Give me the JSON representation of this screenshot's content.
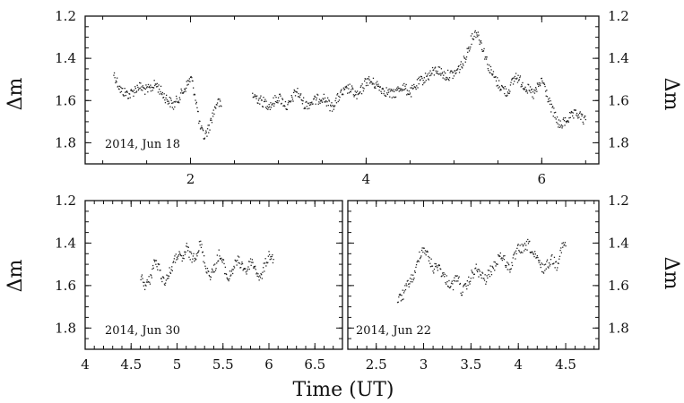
{
  "chart_data": [
    {
      "type": "scatter",
      "id": "top",
      "annotation": "2014, Jun 18",
      "ylabel_left": "Δm",
      "ylabel_right": "Δm",
      "xlabel": "",
      "xlim": [
        0.8,
        6.65
      ],
      "ylim": [
        1.9,
        1.2
      ],
      "xticks": [
        2,
        4,
        6
      ],
      "yticks": [
        1.2,
        1.4,
        1.6,
        1.8
      ],
      "segments": [
        {
          "x": [
            1.12,
            1.2,
            1.3,
            1.4,
            1.5,
            1.6,
            1.7,
            1.8,
            1.9,
            2.0,
            2.05,
            2.1,
            2.15,
            2.2,
            2.25,
            2.3,
            2.35
          ],
          "y": [
            1.47,
            1.55,
            1.57,
            1.53,
            1.55,
            1.52,
            1.58,
            1.62,
            1.56,
            1.49,
            1.58,
            1.72,
            1.77,
            1.73,
            1.66,
            1.6,
            1.63
          ]
        },
        {
          "x": [
            2.7,
            2.8,
            2.9,
            3.0,
            3.1,
            3.2,
            3.3,
            3.4,
            3.5,
            3.6,
            3.7,
            3.8,
            3.9,
            4.0,
            4.1,
            4.2,
            4.3,
            4.4,
            4.5,
            4.6,
            4.7,
            4.8,
            4.9,
            5.0,
            5.1,
            5.2,
            5.25,
            5.3,
            5.4,
            5.5,
            5.6,
            5.7,
            5.8,
            5.9,
            6.0,
            6.1,
            6.2,
            6.3,
            6.4,
            6.5
          ],
          "y": [
            1.57,
            1.6,
            1.62,
            1.58,
            1.63,
            1.55,
            1.62,
            1.6,
            1.58,
            1.63,
            1.57,
            1.54,
            1.58,
            1.5,
            1.52,
            1.55,
            1.57,
            1.53,
            1.56,
            1.51,
            1.48,
            1.45,
            1.48,
            1.47,
            1.42,
            1.3,
            1.27,
            1.32,
            1.45,
            1.52,
            1.56,
            1.48,
            1.53,
            1.57,
            1.5,
            1.63,
            1.72,
            1.68,
            1.66,
            1.7
          ]
        }
      ]
    },
    {
      "type": "scatter",
      "id": "bottom-left",
      "annotation": "2014, Jun 30",
      "ylabel_left": "Δm",
      "xlabel": "",
      "xlim": [
        4.0,
        6.8
      ],
      "ylim": [
        1.9,
        1.2
      ],
      "xticks": [
        4,
        4.5,
        5,
        5.5,
        6,
        6.5
      ],
      "yticks": [
        1.2,
        1.4,
        1.6,
        1.8
      ],
      "segments": [
        {
          "x": [
            4.6,
            4.65,
            4.7,
            4.75,
            4.8,
            4.85,
            4.9,
            4.95,
            5.0,
            5.05,
            5.1,
            5.15,
            5.2,
            5.25,
            5.3,
            5.35,
            5.4,
            5.45,
            5.5,
            5.55,
            5.6,
            5.65,
            5.7,
            5.75,
            5.8,
            5.85,
            5.9,
            5.95,
            6.0,
            6.05
          ],
          "y": [
            1.55,
            1.6,
            1.57,
            1.48,
            1.52,
            1.58,
            1.55,
            1.5,
            1.45,
            1.48,
            1.42,
            1.47,
            1.45,
            1.4,
            1.5,
            1.55,
            1.52,
            1.45,
            1.5,
            1.57,
            1.52,
            1.48,
            1.5,
            1.53,
            1.48,
            1.52,
            1.57,
            1.5,
            1.45,
            1.48
          ]
        }
      ]
    },
    {
      "type": "scatter",
      "id": "bottom-right",
      "annotation": "2014, Jun 22",
      "ylabel_right": "Δm",
      "xlabel": "",
      "xlim": [
        2.2,
        4.85
      ],
      "ylim": [
        1.9,
        1.2
      ],
      "xticks": [
        2.5,
        3,
        3.5,
        4,
        4.5
      ],
      "yticks": [
        1.2,
        1.4,
        1.6,
        1.8
      ],
      "segments": [
        {
          "x": [
            2.72,
            2.78,
            2.84,
            2.9,
            2.95,
            3.0,
            3.05,
            3.1,
            3.15,
            3.2,
            3.25,
            3.3,
            3.35,
            3.4,
            3.45,
            3.5,
            3.55,
            3.6,
            3.65,
            3.7,
            3.75,
            3.8,
            3.85,
            3.9,
            3.95,
            4.0,
            4.05,
            4.1,
            4.15,
            4.2,
            4.25,
            4.3,
            4.35,
            4.4,
            4.45,
            4.5
          ],
          "y": [
            1.67,
            1.64,
            1.58,
            1.55,
            1.45,
            1.42,
            1.47,
            1.52,
            1.5,
            1.55,
            1.58,
            1.6,
            1.55,
            1.63,
            1.6,
            1.55,
            1.52,
            1.55,
            1.57,
            1.53,
            1.5,
            1.45,
            1.48,
            1.52,
            1.47,
            1.42,
            1.43,
            1.4,
            1.45,
            1.48,
            1.52,
            1.5,
            1.47,
            1.5,
            1.42,
            1.4
          ]
        }
      ]
    }
  ],
  "shared_xlabel": "Time (UT)"
}
